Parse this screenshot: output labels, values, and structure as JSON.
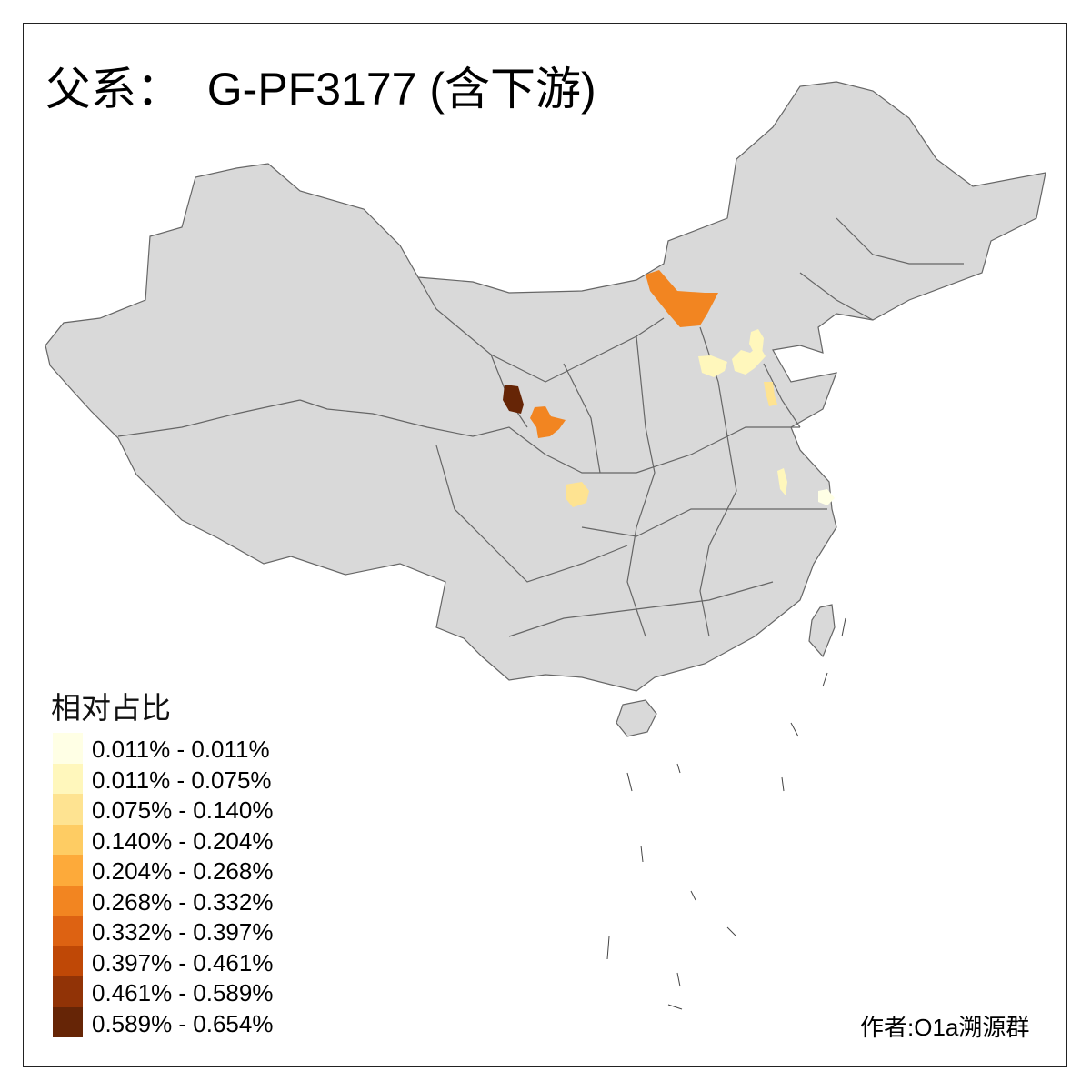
{
  "title": "父系：  G-PF3177 (含下游)",
  "legend": {
    "title": "相对占比",
    "classes": [
      {
        "label": "0.011% - 0.011%",
        "color": "#FFFFE5"
      },
      {
        "label": "0.011% - 0.075%",
        "color": "#FFF7BC"
      },
      {
        "label": "0.075% - 0.140%",
        "color": "#FEE391"
      },
      {
        "label": "0.140% - 0.204%",
        "color": "#FECC63"
      },
      {
        "label": "0.204% - 0.268%",
        "color": "#FDAA3A"
      },
      {
        "label": "0.268% - 0.332%",
        "color": "#F28521"
      },
      {
        "label": "0.332% - 0.397%",
        "color": "#DD6212"
      },
      {
        "label": "0.397% - 0.461%",
        "color": "#BF4806"
      },
      {
        "label": "0.461% - 0.589%",
        "color": "#913306"
      },
      {
        "label": "0.589% - 0.654%",
        "color": "#662506"
      }
    ]
  },
  "map": {
    "base_color": "#D9D9D9",
    "border_color": "#666666",
    "filled_regions": [
      {
        "class": 5
      },
      {
        "class": 9
      },
      {
        "class": 5
      },
      {
        "class": 2
      },
      {
        "class": 1
      },
      {
        "class": 1
      },
      {
        "class": 1
      },
      {
        "class": 2
      },
      {
        "class": 1
      },
      {
        "class": 0
      }
    ]
  },
  "credit": "作者:O1a溯源群"
}
